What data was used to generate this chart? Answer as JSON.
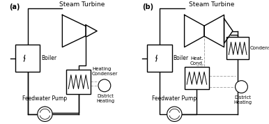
{
  "fig_width": 3.86,
  "fig_height": 1.78,
  "dpi": 100,
  "bg_color": "#ffffff",
  "line_color": "#000000",
  "dashed_color": "#aaaaaa",
  "label_a": "(a)",
  "label_b": "(b)",
  "title_a": "Steam Turbine",
  "title_b": "Steam Turbine",
  "text_boiler_a": "Boiler",
  "text_boiler_b": "Boiler",
  "text_heating_condenser": "Heating\nCondenser",
  "text_condenser": "Condenser",
  "text_heat_cond": "Heat.\nCond.",
  "text_district_a": "District\nHeating",
  "text_district_b": "District\nHeating",
  "text_feedwater_a": "Feedwater Pump",
  "text_feedwater_b": "Feedwater Pump"
}
